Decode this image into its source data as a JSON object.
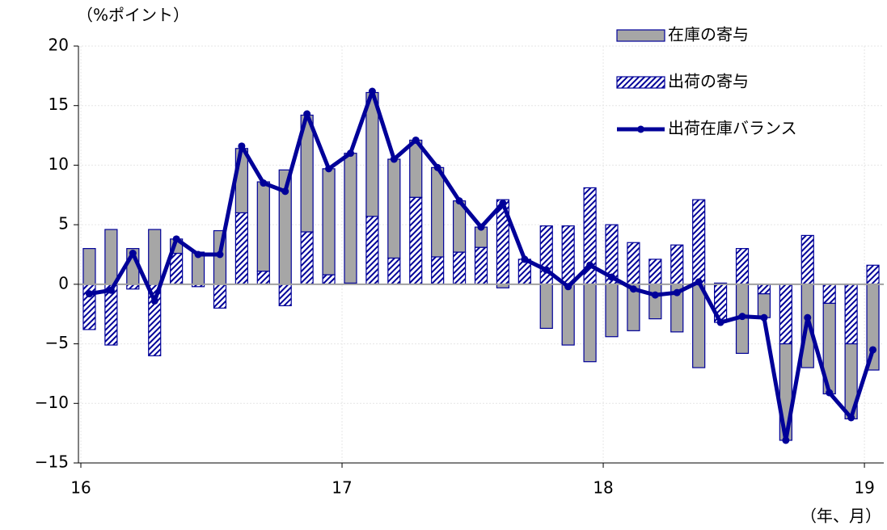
{
  "chart_data": {
    "type": "bar+line",
    "unit_label": "（%ポイント）",
    "x_label": "（年、月）",
    "categories": [
      "16",
      null,
      null,
      null,
      null,
      null,
      null,
      null,
      null,
      null,
      null,
      null,
      "17",
      null,
      null,
      null,
      null,
      null,
      null,
      null,
      null,
      null,
      null,
      null,
      "18",
      null,
      null,
      null,
      null,
      null,
      null,
      null,
      null,
      null,
      null,
      null,
      "19"
    ],
    "series": [
      {
        "name": "在庫の寄与",
        "type": "bar",
        "color": "#a6a6a6",
        "values": [
          3.0,
          4.6,
          3.0,
          4.6,
          1.2,
          2.7,
          4.5,
          5.4,
          7.5,
          9.6,
          9.8,
          8.9,
          10.9,
          10.4,
          8.3,
          4.8,
          7.5,
          4.3,
          1.7,
          -0.3,
          0,
          -3.7,
          -5.1,
          -6.5,
          -4.4,
          -3.9,
          -2.9,
          -4.0,
          -7.0,
          0.1,
          -5.8,
          -2.0,
          -8.1,
          -7.0,
          -7.6,
          -6.3,
          -7.2
        ]
      },
      {
        "name": "出荷の寄与",
        "type": "bar",
        "color": "#000099",
        "values": [
          -3.8,
          -5.1,
          -0.4,
          -6.0,
          2.6,
          -0.2,
          -2.0,
          6.0,
          1.1,
          -1.8,
          4.4,
          0.8,
          0.1,
          5.7,
          2.2,
          7.3,
          2.3,
          2.7,
          3.1,
          7.1,
          2.1,
          4.9,
          4.9,
          8.1,
          5.0,
          3.5,
          2.1,
          3.3,
          7.1,
          -3.2,
          3.0,
          -0.8,
          -5.0,
          4.1,
          -1.6,
          -5.0,
          1.6
        ]
      },
      {
        "name": "出荷在庫バランス",
        "type": "line",
        "color": "#000099",
        "values": [
          -0.8,
          -0.5,
          2.6,
          -1.4,
          3.8,
          2.5,
          2.5,
          11.6,
          8.5,
          7.8,
          14.3,
          9.7,
          11.0,
          16.2,
          10.5,
          12.1,
          9.8,
          7.0,
          4.8,
          6.8,
          2.1,
          1.2,
          -0.2,
          1.6,
          0.6,
          -0.4,
          -0.9,
          -0.7,
          0.2,
          -3.2,
          -2.7,
          -2.8,
          -13.1,
          -2.8,
          -9.1,
          -11.2,
          -5.5
        ]
      }
    ],
    "ylim": [
      -15,
      20
    ],
    "yticks": [
      {
        "value": -15,
        "label": "−15"
      },
      {
        "value": -10,
        "label": "−10"
      },
      {
        "value": -5,
        "label": "−5"
      },
      0,
      5,
      10,
      15,
      20
    ],
    "grid": true,
    "legend": "upper right"
  }
}
